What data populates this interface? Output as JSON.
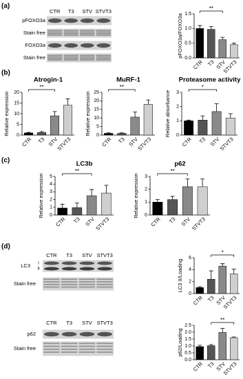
{
  "panels": [
    "(a)",
    "(b)",
    "(c)",
    "(d)"
  ],
  "blots": [
    {
      "lanes": [
        "CTR",
        "T3",
        "STV",
        "STVT3"
      ],
      "rows": [
        "pFOXO3a",
        "Stain free",
        "FOXO3a",
        "Stain free"
      ]
    },
    {
      "lanes": [
        "CTR",
        "T3",
        "STV",
        "STVT3"
      ],
      "rows": [
        "LC3",
        "Stain free"
      ],
      "marks": [
        "I",
        "II"
      ]
    },
    {
      "lanes": [
        "CTR",
        "T3",
        "STV",
        "STVT3"
      ],
      "rows": [
        "p62",
        "Stain free"
      ]
    }
  ],
  "chart_data": [
    {
      "type": "bar",
      "ylabel": "pFOXO3a/FOXO3a",
      "categories": [
        "CTR",
        "T3",
        "STV",
        "STVT3"
      ],
      "values": [
        1.0,
        0.97,
        0.62,
        0.45
      ],
      "errors": [
        0.1,
        0.1,
        0.08,
        0.05
      ],
      "colors": [
        "#000000",
        "#555555",
        "#8a8a8a",
        "#cfcfcf"
      ],
      "ylim": [
        0,
        1.5
      ],
      "yticks": [
        {
          "value": 0,
          "label": "0.0"
        },
        {
          "value": 0.5,
          "label": "0.5"
        },
        {
          "value": 1,
          "label": "1.0"
        },
        {
          "value": 1.5,
          "label": "1.5"
        }
      ],
      "significance": {
        "label": "**",
        "pair": [
          "CTR",
          "STV"
        ]
      }
    },
    {
      "type": "bar",
      "title": "Atrogin-1",
      "ylabel": "Relative expression",
      "categories": [
        "CTR",
        "T3",
        "STV",
        "STVT3"
      ],
      "values": [
        1,
        1.2,
        9,
        14
      ],
      "errors": [
        0.3,
        0.5,
        2,
        3
      ],
      "colors": [
        "#000000",
        "#555555",
        "#8a8a8a",
        "#cfcfcf"
      ],
      "ylim": [
        0,
        20
      ],
      "yticks": [
        0,
        5,
        10,
        15,
        20
      ],
      "significance": {
        "label": "**",
        "pair": [
          "CTR",
          "STV"
        ]
      }
    },
    {
      "type": "bar",
      "title": "MuRF-1",
      "ylabel": "Relative expression",
      "categories": [
        "CTR",
        "T3",
        "STV",
        "STVT3"
      ],
      "values": [
        1,
        1,
        10.5,
        18
      ],
      "errors": [
        0.3,
        0.3,
        3,
        2.5
      ],
      "colors": [
        "#000000",
        "#555555",
        "#8a8a8a",
        "#cfcfcf"
      ],
      "ylim": [
        0,
        25
      ],
      "yticks": [
        0,
        5,
        10,
        15,
        20,
        25
      ],
      "significance": {
        "label": "**",
        "pair": [
          "CTR",
          "STV"
        ]
      }
    },
    {
      "type": "bar",
      "title": "Proteasome activity",
      "ylabel": "Relative absorbance",
      "categories": [
        "CTR",
        "T3",
        "STV",
        "STVT3"
      ],
      "values": [
        1,
        1.05,
        1.65,
        1.2
      ],
      "errors": [
        0.05,
        0.3,
        0.55,
        0.3
      ],
      "colors": [
        "#000000",
        "#555555",
        "#8a8a8a",
        "#cfcfcf"
      ],
      "ylim": [
        0,
        3
      ],
      "yticks": [
        0,
        1,
        2,
        3
      ],
      "significance": {
        "label": "*",
        "pair": [
          "CTR",
          "STV"
        ]
      }
    },
    {
      "type": "bar",
      "title": "LC3b",
      "ylabel": "Relative expression",
      "categories": [
        "CTR",
        "T3",
        "STV",
        "STVT3"
      ],
      "values": [
        0.9,
        0.95,
        2.5,
        2.85
      ],
      "errors": [
        0.5,
        0.6,
        0.8,
        1
      ],
      "colors": [
        "#000000",
        "#555555",
        "#8a8a8a",
        "#cfcfcf"
      ],
      "ylim": [
        0,
        5
      ],
      "yticks": [
        0,
        1,
        2,
        3,
        4,
        5
      ],
      "significance": {
        "label": "**",
        "pair": [
          "CTR",
          "STV"
        ]
      }
    },
    {
      "type": "bar",
      "title": "p62",
      "ylabel": "Relative expression",
      "categories": [
        "CTR",
        "T3",
        "STV",
        "STVT3"
      ],
      "values": [
        1,
        1.2,
        2.2,
        2.2
      ],
      "errors": [
        0.2,
        0.25,
        0.6,
        0.6
      ],
      "colors": [
        "#000000",
        "#555555",
        "#8a8a8a",
        "#cfcfcf"
      ],
      "ylim": [
        0,
        3
      ],
      "yticks": [
        0,
        1,
        2,
        3
      ],
      "significance": {
        "label": "**",
        "pair": [
          "CTR",
          "STV"
        ]
      }
    },
    {
      "type": "bar",
      "ylabel": "LC3 II/Loading",
      "categories": [
        "CTR",
        "T3",
        "STV",
        "STVT3"
      ],
      "values": [
        1,
        2.4,
        4.6,
        3.3
      ],
      "errors": [
        0.15,
        1.4,
        0.4,
        0.8
      ],
      "colors": [
        "#000000",
        "#555555",
        "#8a8a8a",
        "#cfcfcf"
      ],
      "ylim": [
        0,
        6
      ],
      "yticks": [
        0,
        2,
        4,
        6
      ],
      "significance": {
        "label": "*",
        "pair": [
          "T3",
          "STVT3"
        ]
      }
    },
    {
      "type": "bar",
      "ylabel": "p62/Loading",
      "categories": [
        "CTR",
        "T3",
        "STV",
        "STVT3"
      ],
      "values": [
        0.95,
        1.02,
        1.98,
        1.6
      ],
      "errors": [
        0.1,
        0.08,
        0.3,
        0.05
      ],
      "colors": [
        "#000000",
        "#555555",
        "#8a8a8a",
        "#cfcfcf"
      ],
      "ylim": [
        0,
        2.5
      ],
      "yticks": [
        {
          "value": 0,
          "label": "0.0"
        },
        {
          "value": 0.5,
          "label": "0.5"
        },
        {
          "value": 1,
          "label": "1.0"
        },
        {
          "value": 1.5,
          "label": "1.5"
        },
        {
          "value": 2,
          "label": "2.0"
        },
        {
          "value": 2.5,
          "label": "2.5"
        }
      ],
      "significance": {
        "label": "**",
        "pair": [
          "T3",
          "STVT3"
        ]
      }
    }
  ]
}
